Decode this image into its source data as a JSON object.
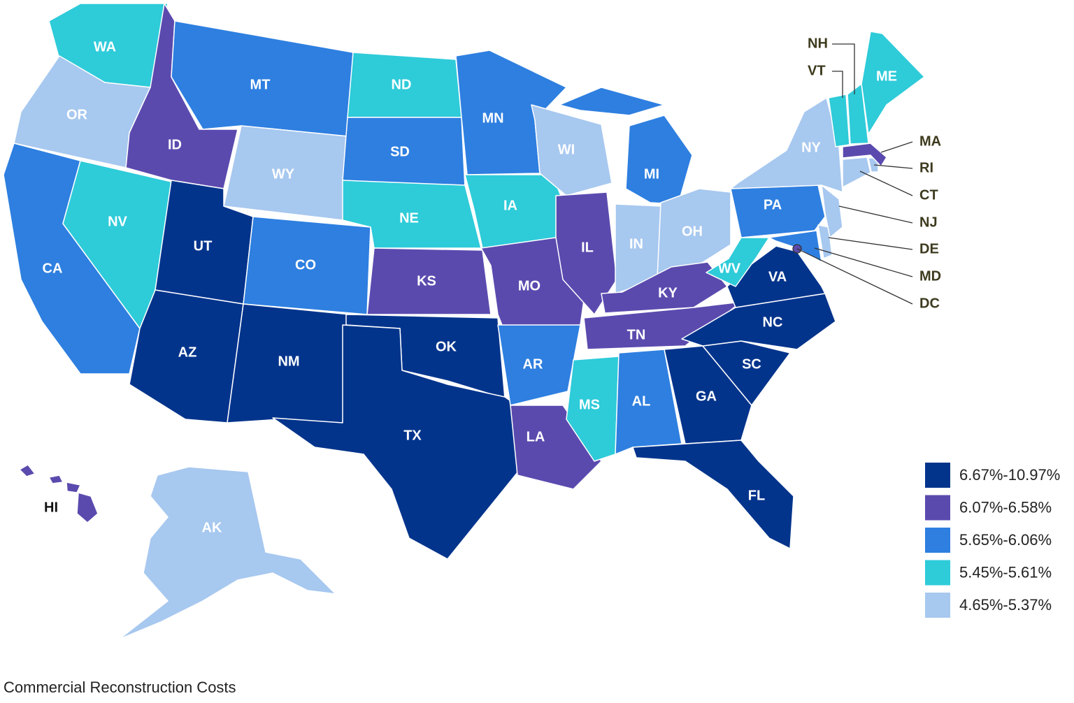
{
  "states": [
    {
      "label": "WA",
      "color": "#2ecbd9"
    },
    {
      "label": "OR",
      "color": "#a7c8ef"
    },
    {
      "label": "CA",
      "color": "#2e7fe0"
    },
    {
      "label": "NV",
      "color": "#2ecbd9"
    },
    {
      "label": "ID",
      "color": "#5b4aae"
    },
    {
      "label": "MT",
      "color": "#2e7fe0"
    },
    {
      "label": "WY",
      "color": "#a7c8ef"
    },
    {
      "label": "UT",
      "color": "#03348c"
    },
    {
      "label": "AZ",
      "color": "#03348c"
    },
    {
      "label": "CO",
      "color": "#2e7fe0"
    },
    {
      "label": "NM",
      "color": "#03348c"
    },
    {
      "label": "ND",
      "color": "#2ecbd9"
    },
    {
      "label": "SD",
      "color": "#2e7fe0"
    },
    {
      "label": "NE",
      "color": "#2ecbd9"
    },
    {
      "label": "KS",
      "color": "#5b4aae"
    },
    {
      "label": "OK",
      "color": "#03348c"
    },
    {
      "label": "TX",
      "color": "#03348c"
    },
    {
      "label": "MN",
      "color": "#2e7fe0"
    },
    {
      "label": "IA",
      "color": "#2ecbd9"
    },
    {
      "label": "MO",
      "color": "#5b4aae"
    },
    {
      "label": "AR",
      "color": "#2e7fe0"
    },
    {
      "label": "LA",
      "color": "#5b4aae"
    },
    {
      "label": "WI",
      "color": "#a7c8ef"
    },
    {
      "label": "IL",
      "color": "#5b4aae"
    },
    {
      "label": "MI",
      "color": "#2e7fe0"
    },
    {
      "label": "IN",
      "color": "#a7c8ef"
    },
    {
      "label": "OH",
      "color": "#a7c8ef"
    },
    {
      "label": "KY",
      "color": "#5b4aae"
    },
    {
      "label": "TN",
      "color": "#5b4aae"
    },
    {
      "label": "MS",
      "color": "#2ecbd9"
    },
    {
      "label": "AL",
      "color": "#2e7fe0"
    },
    {
      "label": "GA",
      "color": "#03348c"
    },
    {
      "label": "FL",
      "color": "#03348c"
    },
    {
      "label": "SC",
      "color": "#03348c"
    },
    {
      "label": "NC",
      "color": "#03348c"
    },
    {
      "label": "VA",
      "color": "#03348c"
    },
    {
      "label": "WV",
      "color": "#2ecbd9"
    },
    {
      "label": "PA",
      "color": "#2e7fe0"
    },
    {
      "label": "NY",
      "color": "#a7c8ef"
    },
    {
      "label": "MD",
      "color": "#2e7fe0"
    },
    {
      "label": "DE",
      "color": "#a7c8ef"
    },
    {
      "label": "NJ",
      "color": "#a7c8ef"
    },
    {
      "label": "CT",
      "color": "#a7c8ef"
    },
    {
      "label": "RI",
      "color": "#a7c8ef"
    },
    {
      "label": "MA",
      "color": "#5b4aae"
    },
    {
      "label": "VT",
      "color": "#2ecbd9"
    },
    {
      "label": "NH",
      "color": "#2ecbd9"
    },
    {
      "label": "ME",
      "color": "#2ecbd9"
    },
    {
      "label": "AK",
      "color": "#a7c8ef"
    },
    {
      "label": "HI",
      "color": "#5b4aae"
    },
    {
      "label": "DC",
      "color": "#5b4aae"
    }
  ],
  "legend": [
    {
      "label": "6.67%-10.97%",
      "color": "#03348c"
    },
    {
      "label": "6.07%-6.58%",
      "color": "#5b4aae"
    },
    {
      "label": "5.65%-6.06%",
      "color": "#2e7fe0"
    },
    {
      "label": "5.45%-5.61%",
      "color": "#2ecbd9"
    },
    {
      "label": "4.65%-5.37%",
      "color": "#a7c8ef"
    }
  ],
  "caption": "Commercial Reconstruction Costs"
}
